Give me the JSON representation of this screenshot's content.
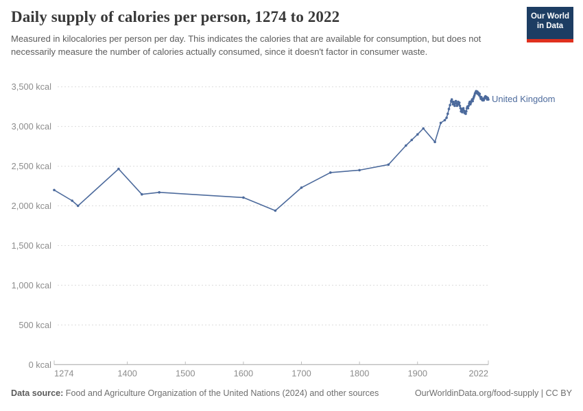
{
  "header": {
    "title": "Daily supply of calories per person, 1274 to 2022",
    "subtitle": "Measured in kilocalories per person per day. This indicates the calories that are available for consumption, but does not necessarily measure the number of calories actually consumed, since it doesn't factor in consumer waste.",
    "logo": {
      "line1": "Our World",
      "line2": "in Data"
    }
  },
  "chart_data": {
    "type": "line",
    "title": "Daily supply of calories per person, 1274 to 2022",
    "xlabel": "",
    "ylabel": "",
    "xlim": [
      1274,
      2022
    ],
    "ylim": [
      0,
      3500
    ],
    "grid": "horizontal-dashed",
    "legend_position": "end-of-line-label",
    "x_ticks": [
      1274,
      1400,
      1500,
      1600,
      1700,
      1800,
      1900,
      2022
    ],
    "y_ticks": [
      0,
      500,
      1000,
      1500,
      2000,
      2500,
      3000,
      3500
    ],
    "y_tick_labels": [
      "0 kcal",
      "500 kcal",
      "1,000 kcal",
      "1,500 kcal",
      "2,000 kcal",
      "2,500 kcal",
      "3,000 kcal",
      "3,500 kcal"
    ],
    "series": [
      {
        "name": "United Kingdom",
        "color": "#4c6a9c",
        "unit": "kcal",
        "points": [
          [
            1274,
            2200
          ],
          [
            1305,
            2065
          ],
          [
            1315,
            2000
          ],
          [
            1385,
            2465
          ],
          [
            1425,
            2145
          ],
          [
            1455,
            2170
          ],
          [
            1600,
            2105
          ],
          [
            1655,
            1940
          ],
          [
            1700,
            2230
          ],
          [
            1750,
            2420
          ],
          [
            1800,
            2450
          ],
          [
            1850,
            2520
          ],
          [
            1880,
            2760
          ],
          [
            1890,
            2830
          ],
          [
            1900,
            2900
          ],
          [
            1910,
            2975
          ],
          [
            1930,
            2805
          ],
          [
            1940,
            3045
          ],
          [
            1947,
            3080
          ],
          [
            1950,
            3110
          ],
          [
            1952,
            3160
          ],
          [
            1954,
            3220
          ],
          [
            1956,
            3270
          ],
          [
            1958,
            3320
          ],
          [
            1959,
            3340
          ],
          [
            1960,
            3310
          ],
          [
            1961,
            3280
          ],
          [
            1962,
            3310
          ],
          [
            1963,
            3290
          ],
          [
            1964,
            3260
          ],
          [
            1965,
            3290
          ],
          [
            1966,
            3320
          ],
          [
            1967,
            3290
          ],
          [
            1968,
            3260
          ],
          [
            1969,
            3280
          ],
          [
            1970,
            3310
          ],
          [
            1971,
            3280
          ],
          [
            1972,
            3300
          ],
          [
            1973,
            3260
          ],
          [
            1974,
            3230
          ],
          [
            1975,
            3190
          ],
          [
            1976,
            3220
          ],
          [
            1977,
            3180
          ],
          [
            1978,
            3200
          ],
          [
            1979,
            3230
          ],
          [
            1980,
            3200
          ],
          [
            1981,
            3170
          ],
          [
            1982,
            3190
          ],
          [
            1983,
            3160
          ],
          [
            1984,
            3190
          ],
          [
            1985,
            3230
          ],
          [
            1986,
            3250
          ],
          [
            1987,
            3230
          ],
          [
            1988,
            3260
          ],
          [
            1989,
            3290
          ],
          [
            1990,
            3310
          ],
          [
            1991,
            3280
          ],
          [
            1992,
            3300
          ],
          [
            1993,
            3320
          ],
          [
            1994,
            3340
          ],
          [
            1995,
            3320
          ],
          [
            1996,
            3350
          ],
          [
            1997,
            3370
          ],
          [
            1998,
            3390
          ],
          [
            1999,
            3415
          ],
          [
            2000,
            3430
          ],
          [
            2001,
            3445
          ],
          [
            2002,
            3420
          ],
          [
            2003,
            3440
          ],
          [
            2004,
            3410
          ],
          [
            2005,
            3425
          ],
          [
            2006,
            3395
          ],
          [
            2007,
            3410
          ],
          [
            2008,
            3375
          ],
          [
            2009,
            3350
          ],
          [
            2010,
            3370
          ],
          [
            2011,
            3340
          ],
          [
            2012,
            3330
          ],
          [
            2013,
            3350
          ],
          [
            2014,
            3330
          ],
          [
            2015,
            3350
          ],
          [
            2016,
            3370
          ],
          [
            2017,
            3380
          ],
          [
            2018,
            3360
          ],
          [
            2019,
            3370
          ],
          [
            2020,
            3340
          ],
          [
            2021,
            3360
          ],
          [
            2022,
            3340
          ]
        ]
      }
    ]
  },
  "footer": {
    "source_label": "Data source:",
    "source_text": " Food and Agriculture Organization of the United Nations (2024) and other sources",
    "credit": "OurWorldinData.org/food-supply | CC BY"
  },
  "colors": {
    "accent_line": "#4c6a9c",
    "logo_bg": "#1d3d63",
    "logo_red": "#e0301e",
    "grid": "#dcdcdc",
    "axis": "#a3a3a3",
    "tick_text": "#8c8c8c",
    "title_text": "#383838",
    "subtitle_text": "#5b5b5b"
  }
}
